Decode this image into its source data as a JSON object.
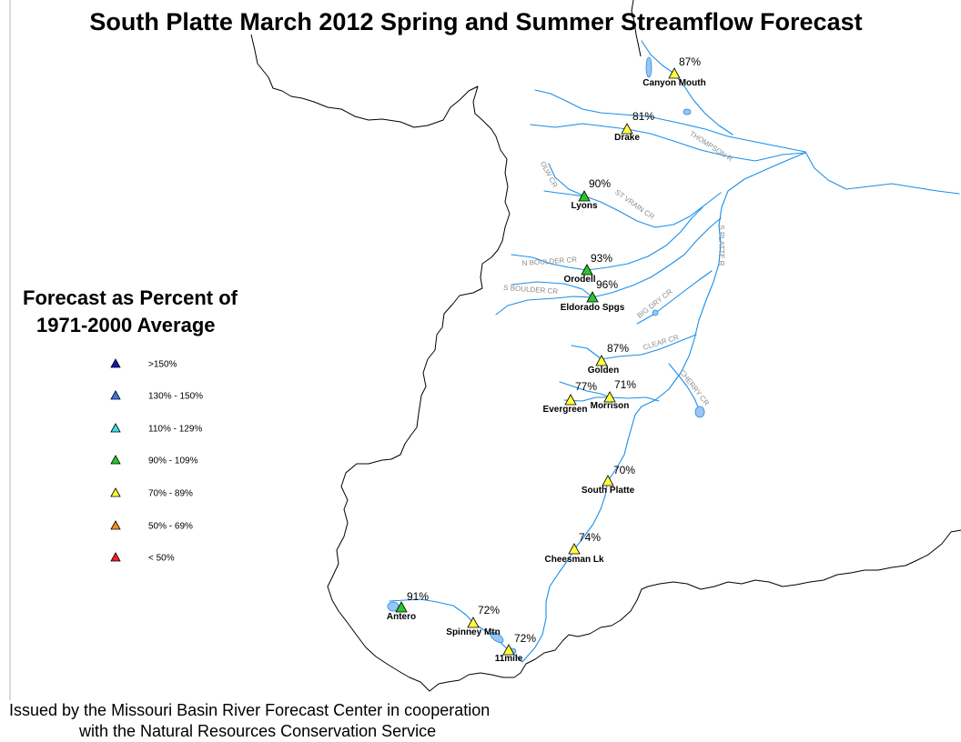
{
  "title": "South Platte March 2012 Spring and Summer Streamflow Forecast",
  "legend": {
    "title_line1": "Forecast as Percent of",
    "title_line2": "1971-2000 Average",
    "items": [
      {
        "label": ">150%",
        "color": "#1414b4"
      },
      {
        "label": "130% - 150%",
        "color": "#3c78f0"
      },
      {
        "label": "110% - 129%",
        "color": "#40e0e0"
      },
      {
        "label": "90% - 109%",
        "color": "#28c828"
      },
      {
        "label": "70% - 89%",
        "color": "#ffff3c"
      },
      {
        "label": "50% - 69%",
        "color": "#ff8c1e"
      },
      {
        "label": "< 50%",
        "color": "#ff1e1e"
      }
    ]
  },
  "stations": [
    {
      "name": "Canyon Mouth",
      "percent": "87%",
      "category": "70% - 89%"
    },
    {
      "name": "Drake",
      "percent": "81%",
      "category": "70% - 89%"
    },
    {
      "name": "Lyons",
      "percent": "90%",
      "category": "90% - 109%"
    },
    {
      "name": "Orodell",
      "percent": "93%",
      "category": "90% - 109%"
    },
    {
      "name": "Eldorado Spgs",
      "percent": "96%",
      "category": "90% - 109%"
    },
    {
      "name": "Golden",
      "percent": "87%",
      "category": "70% - 89%"
    },
    {
      "name": "Evergreen",
      "percent": "77%",
      "category": "70% - 89%"
    },
    {
      "name": "Morrison",
      "percent": "71%",
      "category": "70% - 89%"
    },
    {
      "name": "South Platte",
      "percent": "70%",
      "category": "70% - 89%"
    },
    {
      "name": "Cheesman Lk",
      "percent": "74%",
      "category": "70% - 89%"
    },
    {
      "name": "Antero",
      "percent": "91%",
      "category": "90% - 109%"
    },
    {
      "name": "Spinney Mtn",
      "percent": "72%",
      "category": "70% - 89%"
    },
    {
      "name": "11mile",
      "percent": "72%",
      "category": "70% - 89%"
    }
  ],
  "rivers": [
    "THOMPSON R",
    "OLW CR",
    "ST VRAIN CR",
    "N BOULDER CR",
    "S BOULDER CR",
    "S PLATTE R",
    "BIG DRY CR",
    "CLEAR CR",
    "CHERRY CR"
  ],
  "colors": {
    "river": "#1a8fe8",
    "lake": "#9cc4f2",
    "boundary": "#000000",
    "river_label": "#8c8c8c"
  },
  "footer": {
    "line1": "Issued by the Missouri Basin River Forecast Center in cooperation",
    "line2": "with the Natural Resources Conservation Service"
  }
}
